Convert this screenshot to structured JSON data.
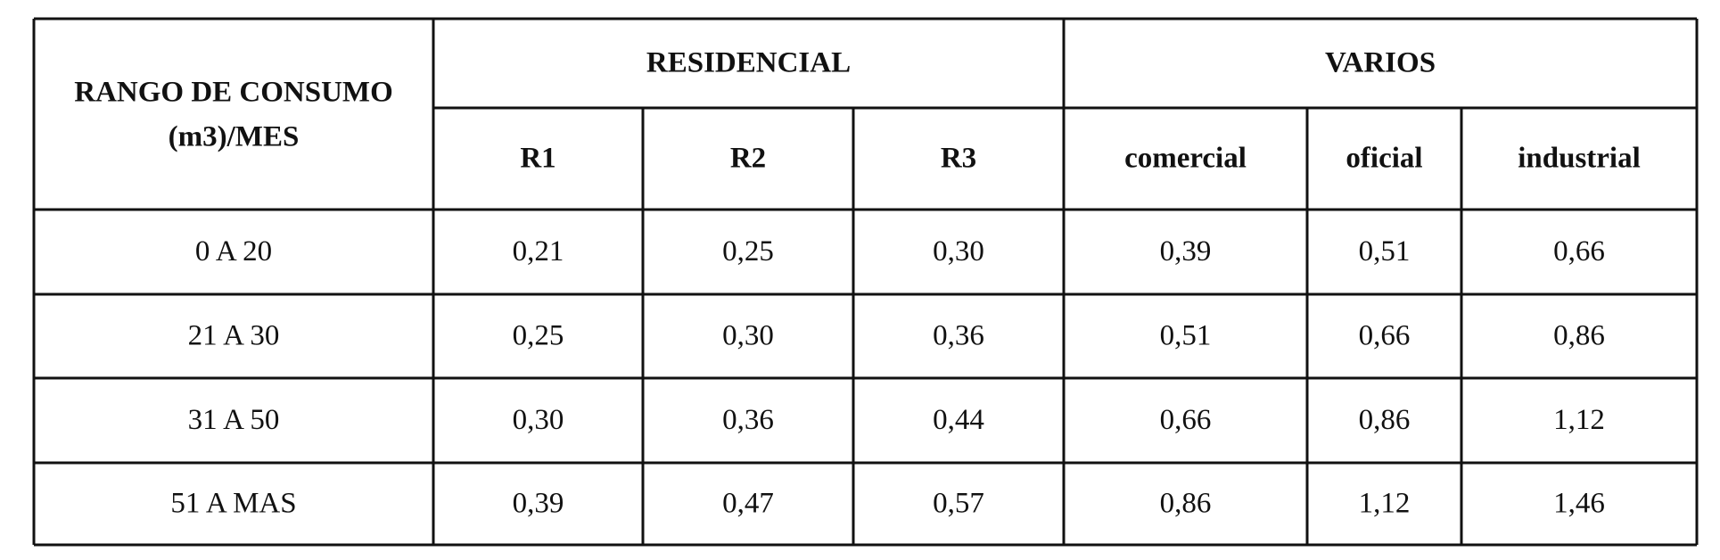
{
  "table": {
    "header": {
      "title_lines": [
        "RANGO DE CONSUMO",
        "(m3)/MES"
      ]
    },
    "groups": [
      {
        "label": "RESIDENCIAL",
        "columns": [
          "R1",
          "R2",
          "R3"
        ]
      },
      {
        "label": "VARIOS",
        "columns": [
          "comercial",
          "oficial",
          "industrial"
        ]
      }
    ],
    "rows": [
      [
        "0 A 20",
        "0,21",
        "0,25",
        "0,30",
        "0,39",
        "0,51",
        "0,66"
      ],
      [
        "21 A 30",
        "0,25",
        "0,30",
        "0,36",
        "0,51",
        "0,66",
        "0,86"
      ],
      [
        "31 A 50",
        "0,30",
        "0,36",
        "0,44",
        "0,66",
        "0,86",
        "1,12"
      ],
      [
        "51 A MAS",
        "0,39",
        "0,47",
        "0,57",
        "0,86",
        "1,12",
        "1,46"
      ]
    ]
  }
}
